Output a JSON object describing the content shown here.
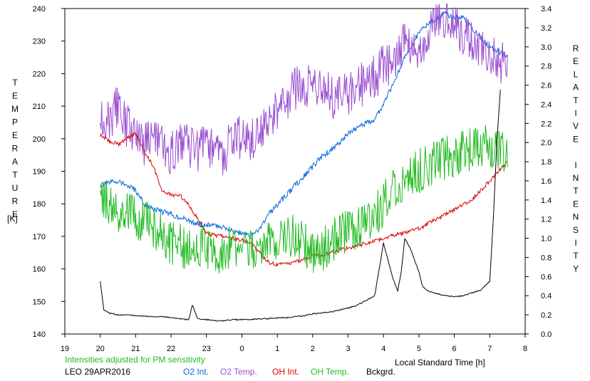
{
  "chart_data": {
    "type": "line",
    "left_axis_label": "TEMPERATURE",
    "left_axis_unit": "[K]",
    "right_axis_label": "RELATIVE INTENSITY",
    "xlabel": "Local Standard Time [h]",
    "xlim": [
      19,
      8
    ],
    "x_ticks": [
      "19",
      "20",
      "21",
      "22",
      "23",
      "0",
      "1",
      "2",
      "3",
      "4",
      "5",
      "6",
      "7",
      "8"
    ],
    "ylim_left": [
      140,
      240
    ],
    "y_ticks_left": [
      140,
      150,
      160,
      170,
      180,
      190,
      200,
      210,
      220,
      230,
      240
    ],
    "ylim_right": [
      0.0,
      3.4
    ],
    "y_ticks_right": [
      "0.0",
      "0.2",
      "0.4",
      "0.6",
      "0.8",
      "1.0",
      "1.2",
      "1.4",
      "1.6",
      "1.8",
      "2.0",
      "2.2",
      "2.4",
      "2.6",
      "2.8",
      "3.0",
      "3.2",
      "3.4"
    ],
    "grid": false,
    "note": "Intensities adjusted for PM sensitivity",
    "station_date": "LEO 29APR2016",
    "legend": [
      {
        "name": "O2 Int.",
        "color": "#0066dd"
      },
      {
        "name": "O2 Temp.",
        "color": "#9a4fd0"
      },
      {
        "name": "OH Int.",
        "color": "#dd0000"
      },
      {
        "name": "OH Temp.",
        "color": "#22bb22"
      },
      {
        "name": "Bckgrd.",
        "color": "#000000"
      }
    ],
    "series": [
      {
        "name": "O2 Int.",
        "axis": "right",
        "color": "#0066dd",
        "x": [
          20,
          20.25,
          20.5,
          20.75,
          21,
          21.25,
          21.5,
          21.75,
          22,
          22.25,
          22.5,
          22.75,
          23,
          23.25,
          23.5,
          23.75,
          24,
          24.25,
          24.5,
          24.75,
          25,
          25.25,
          25.5,
          25.75,
          26,
          26.25,
          26.5,
          26.75,
          27,
          27.25,
          27.5,
          27.75,
          28,
          28.25,
          28.5,
          28.75,
          29,
          29.25,
          29.5,
          29.75,
          30,
          30.25,
          30.5,
          30.75,
          31,
          31.25,
          31.5
        ],
        "y": [
          1.55,
          1.58,
          1.6,
          1.55,
          1.5,
          1.35,
          1.3,
          1.28,
          1.25,
          1.22,
          1.18,
          1.15,
          1.14,
          1.13,
          1.12,
          1.08,
          1.05,
          1.02,
          1.1,
          1.25,
          1.35,
          1.45,
          1.55,
          1.65,
          1.75,
          1.85,
          1.92,
          2.0,
          2.1,
          2.15,
          2.2,
          2.25,
          2.4,
          2.6,
          2.8,
          3.0,
          3.15,
          3.25,
          3.3,
          3.35,
          3.3,
          3.3,
          3.2,
          3.1,
          3.0,
          2.95,
          2.9
        ]
      },
      {
        "name": "O2 Temp.",
        "axis": "left",
        "color": "#9a4fd0",
        "x": [
          20,
          20.25,
          20.5,
          20.75,
          21,
          21.25,
          21.5,
          21.75,
          22,
          22.25,
          22.5,
          22.75,
          23,
          23.25,
          23.5,
          23.75,
          24,
          24.25,
          24.5,
          24.75,
          25,
          25.25,
          25.5,
          25.75,
          26,
          26.25,
          26.5,
          26.75,
          27,
          27.25,
          27.5,
          27.75,
          28,
          28.25,
          28.5,
          28.75,
          29,
          29.25,
          29.5,
          29.75,
          30,
          30.25,
          30.5,
          30.75,
          31,
          31.25,
          31.5
        ],
        "y": [
          208,
          206,
          210,
          204,
          200,
          198,
          199,
          197,
          196,
          199,
          198,
          196,
          199,
          196,
          195,
          200,
          201,
          200,
          202,
          205,
          210,
          212,
          215,
          217,
          215,
          216,
          213,
          212,
          214,
          216,
          217,
          219,
          222,
          223,
          228,
          230,
          228,
          232,
          236,
          238,
          235,
          232,
          230,
          228,
          226,
          224,
          222
        ]
      },
      {
        "name": "OH Int.",
        "axis": "right",
        "color": "#dd0000",
        "x": [
          20,
          20.25,
          20.5,
          20.75,
          21,
          21.25,
          21.5,
          21.75,
          22,
          22.25,
          22.5,
          22.75,
          23,
          23.25,
          23.5,
          23.75,
          24,
          24.25,
          24.5,
          24.75,
          25,
          25.25,
          25.5,
          25.75,
          26,
          26.25,
          26.5,
          26.75,
          27,
          27.25,
          27.5,
          27.75,
          28,
          28.25,
          28.5,
          28.75,
          29,
          29.25,
          29.5,
          29.75,
          30,
          30.25,
          30.5,
          30.75,
          31,
          31.25,
          31.5
        ],
        "y": [
          2.08,
          2.02,
          1.98,
          2.04,
          2.1,
          1.9,
          1.75,
          1.5,
          1.45,
          1.45,
          1.35,
          1.2,
          1.05,
          1.03,
          1.02,
          1.0,
          0.98,
          0.95,
          0.85,
          0.75,
          0.72,
          0.73,
          0.75,
          0.78,
          0.82,
          0.82,
          0.85,
          0.88,
          0.9,
          0.92,
          0.95,
          0.97,
          1.0,
          1.03,
          1.05,
          1.08,
          1.1,
          1.15,
          1.2,
          1.25,
          1.3,
          1.35,
          1.4,
          1.5,
          1.6,
          1.7,
          1.8
        ]
      },
      {
        "name": "OH Temp.",
        "axis": "left",
        "color": "#22bb22",
        "x": [
          20,
          20.25,
          20.5,
          20.75,
          21,
          21.25,
          21.5,
          21.75,
          22,
          22.25,
          22.5,
          22.75,
          23,
          23.25,
          23.5,
          23.75,
          24,
          24.25,
          24.5,
          24.75,
          25,
          25.25,
          25.5,
          25.75,
          26,
          26.25,
          26.5,
          26.75,
          27,
          27.25,
          27.5,
          27.75,
          28,
          28.25,
          28.5,
          28.75,
          29,
          29.25,
          29.5,
          29.75,
          30,
          30.25,
          30.5,
          30.75,
          31,
          31.25,
          31.5
        ],
        "y": [
          182,
          180,
          178,
          178,
          176,
          175,
          172,
          170,
          168,
          167,
          166,
          168,
          167,
          166,
          165,
          167,
          166,
          165,
          167,
          168,
          170,
          171,
          170,
          168,
          165,
          166,
          168,
          170,
          172,
          173,
          175,
          176,
          180,
          184,
          186,
          188,
          190,
          192,
          193,
          194,
          195,
          196,
          197,
          198,
          197,
          196,
          195
        ]
      },
      {
        "name": "Bckgrd.",
        "axis": "right",
        "color": "#000000",
        "x": [
          20,
          20.1,
          20.25,
          20.5,
          20.75,
          21,
          21.25,
          21.5,
          21.75,
          22,
          22.25,
          22.5,
          22.6,
          22.75,
          23,
          23.25,
          23.5,
          23.75,
          24,
          24.25,
          24.5,
          24.75,
          25,
          25.25,
          25.5,
          25.75,
          26,
          26.25,
          26.5,
          26.75,
          27,
          27.25,
          27.5,
          27.75,
          28,
          28.25,
          28.4,
          28.5,
          28.6,
          28.75,
          29,
          29.1,
          29.25,
          29.5,
          29.75,
          30,
          30.25,
          30.5,
          30.75,
          31,
          31.1,
          31.2,
          31.3
        ],
        "y": [
          0.55,
          0.25,
          0.22,
          0.2,
          0.2,
          0.19,
          0.19,
          0.18,
          0.18,
          0.17,
          0.16,
          0.15,
          0.3,
          0.16,
          0.15,
          0.14,
          0.14,
          0.15,
          0.15,
          0.15,
          0.16,
          0.16,
          0.17,
          0.17,
          0.18,
          0.19,
          0.21,
          0.22,
          0.23,
          0.25,
          0.27,
          0.3,
          0.35,
          0.4,
          0.95,
          0.6,
          0.45,
          0.65,
          1.0,
          0.9,
          0.65,
          0.5,
          0.45,
          0.42,
          0.4,
          0.39,
          0.4,
          0.43,
          0.46,
          0.55,
          1.2,
          2.0,
          2.55
        ]
      }
    ]
  }
}
